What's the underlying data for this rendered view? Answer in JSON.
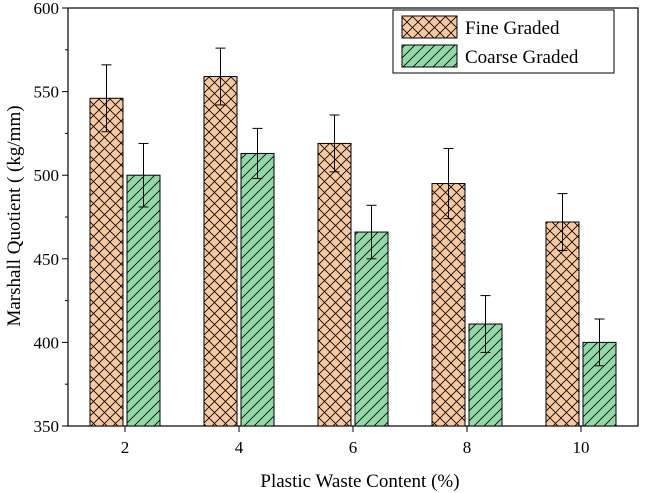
{
  "chart_data": {
    "type": "bar",
    "title": "",
    "xlabel": "Plastic Waste Content (%)",
    "ylabel": "Marshall Quotient ( (kg/mm)",
    "categories": [
      "2",
      "4",
      "6",
      "8",
      "10"
    ],
    "ylim": [
      350,
      600
    ],
    "yticks": [
      "350",
      "400",
      "450",
      "500",
      "550",
      "600"
    ],
    "legend_position": "top-right",
    "series": [
      {
        "name": "Fine Graded",
        "values": [
          546,
          559,
          519,
          495,
          472
        ],
        "errors": [
          20,
          17,
          17,
          21,
          17
        ],
        "color": "#f8c9a0",
        "hatch": "crosshatch"
      },
      {
        "name": "Coarse Graded",
        "values": [
          500,
          513,
          466,
          411,
          400
        ],
        "errors": [
          19,
          15,
          16,
          17,
          14
        ],
        "color": "#93d8a8",
        "hatch": "diagonal"
      }
    ]
  }
}
